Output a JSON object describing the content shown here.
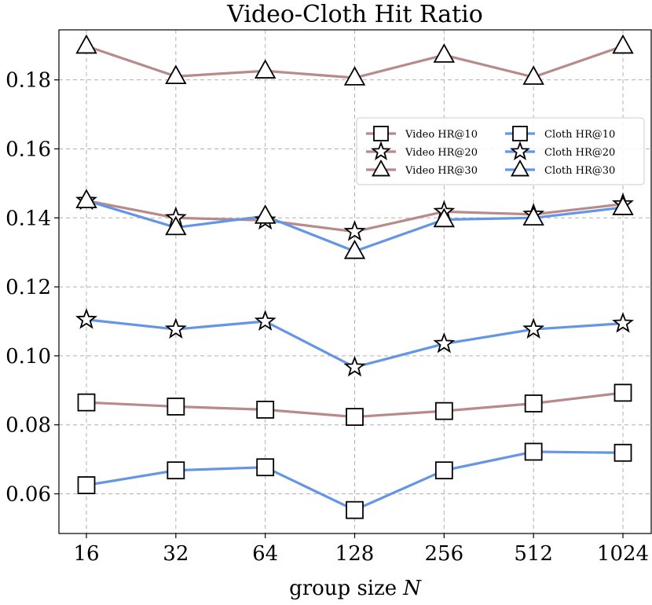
{
  "chart_data": {
    "type": "line",
    "title": "Video-Cloth Hit Ratio",
    "xlabel": "group size",
    "xlabel_var": "N",
    "ylabel": "",
    "categories": [
      "16",
      "32",
      "64",
      "128",
      "256",
      "512",
      "1024"
    ],
    "yticks": [
      0.06,
      0.08,
      0.1,
      0.12,
      0.14,
      0.16,
      0.18
    ],
    "ytick_labels": [
      "0.06",
      "0.08",
      "0.10",
      "0.12",
      "0.14",
      "0.16",
      "0.18"
    ],
    "ylim": [
      0.0485,
      0.1945
    ],
    "grid": true,
    "legend_position": "upper-right",
    "colors": {
      "video": "#b88a8a",
      "cloth": "#6495e6"
    },
    "series": [
      {
        "name": "Video HR@10",
        "group": "video",
        "marker": "square",
        "values": [
          0.0865,
          0.0853,
          0.0844,
          0.0823,
          0.084,
          0.0862,
          0.0893
        ]
      },
      {
        "name": "Video HR@20",
        "group": "video",
        "marker": "star",
        "values": [
          0.145,
          0.14,
          0.1393,
          0.136,
          0.1418,
          0.141,
          0.144
        ]
      },
      {
        "name": "Video HR@30",
        "group": "video",
        "marker": "triangle",
        "values": [
          0.1898,
          0.181,
          0.1826,
          0.1806,
          0.1872,
          0.1808,
          0.1898
        ]
      },
      {
        "name": "Cloth HR@10",
        "group": "cloth",
        "marker": "square",
        "values": [
          0.0625,
          0.0668,
          0.0677,
          0.0553,
          0.0668,
          0.0722,
          0.0719
        ]
      },
      {
        "name": "Cloth HR@20",
        "group": "cloth",
        "marker": "star",
        "values": [
          0.1105,
          0.1077,
          0.11,
          0.0967,
          0.1035,
          0.1077,
          0.1094
        ]
      },
      {
        "name": "Cloth HR@30",
        "group": "cloth",
        "marker": "triangle",
        "values": [
          0.145,
          0.1372,
          0.1405,
          0.1303,
          0.1395,
          0.14,
          0.143
        ]
      }
    ]
  }
}
